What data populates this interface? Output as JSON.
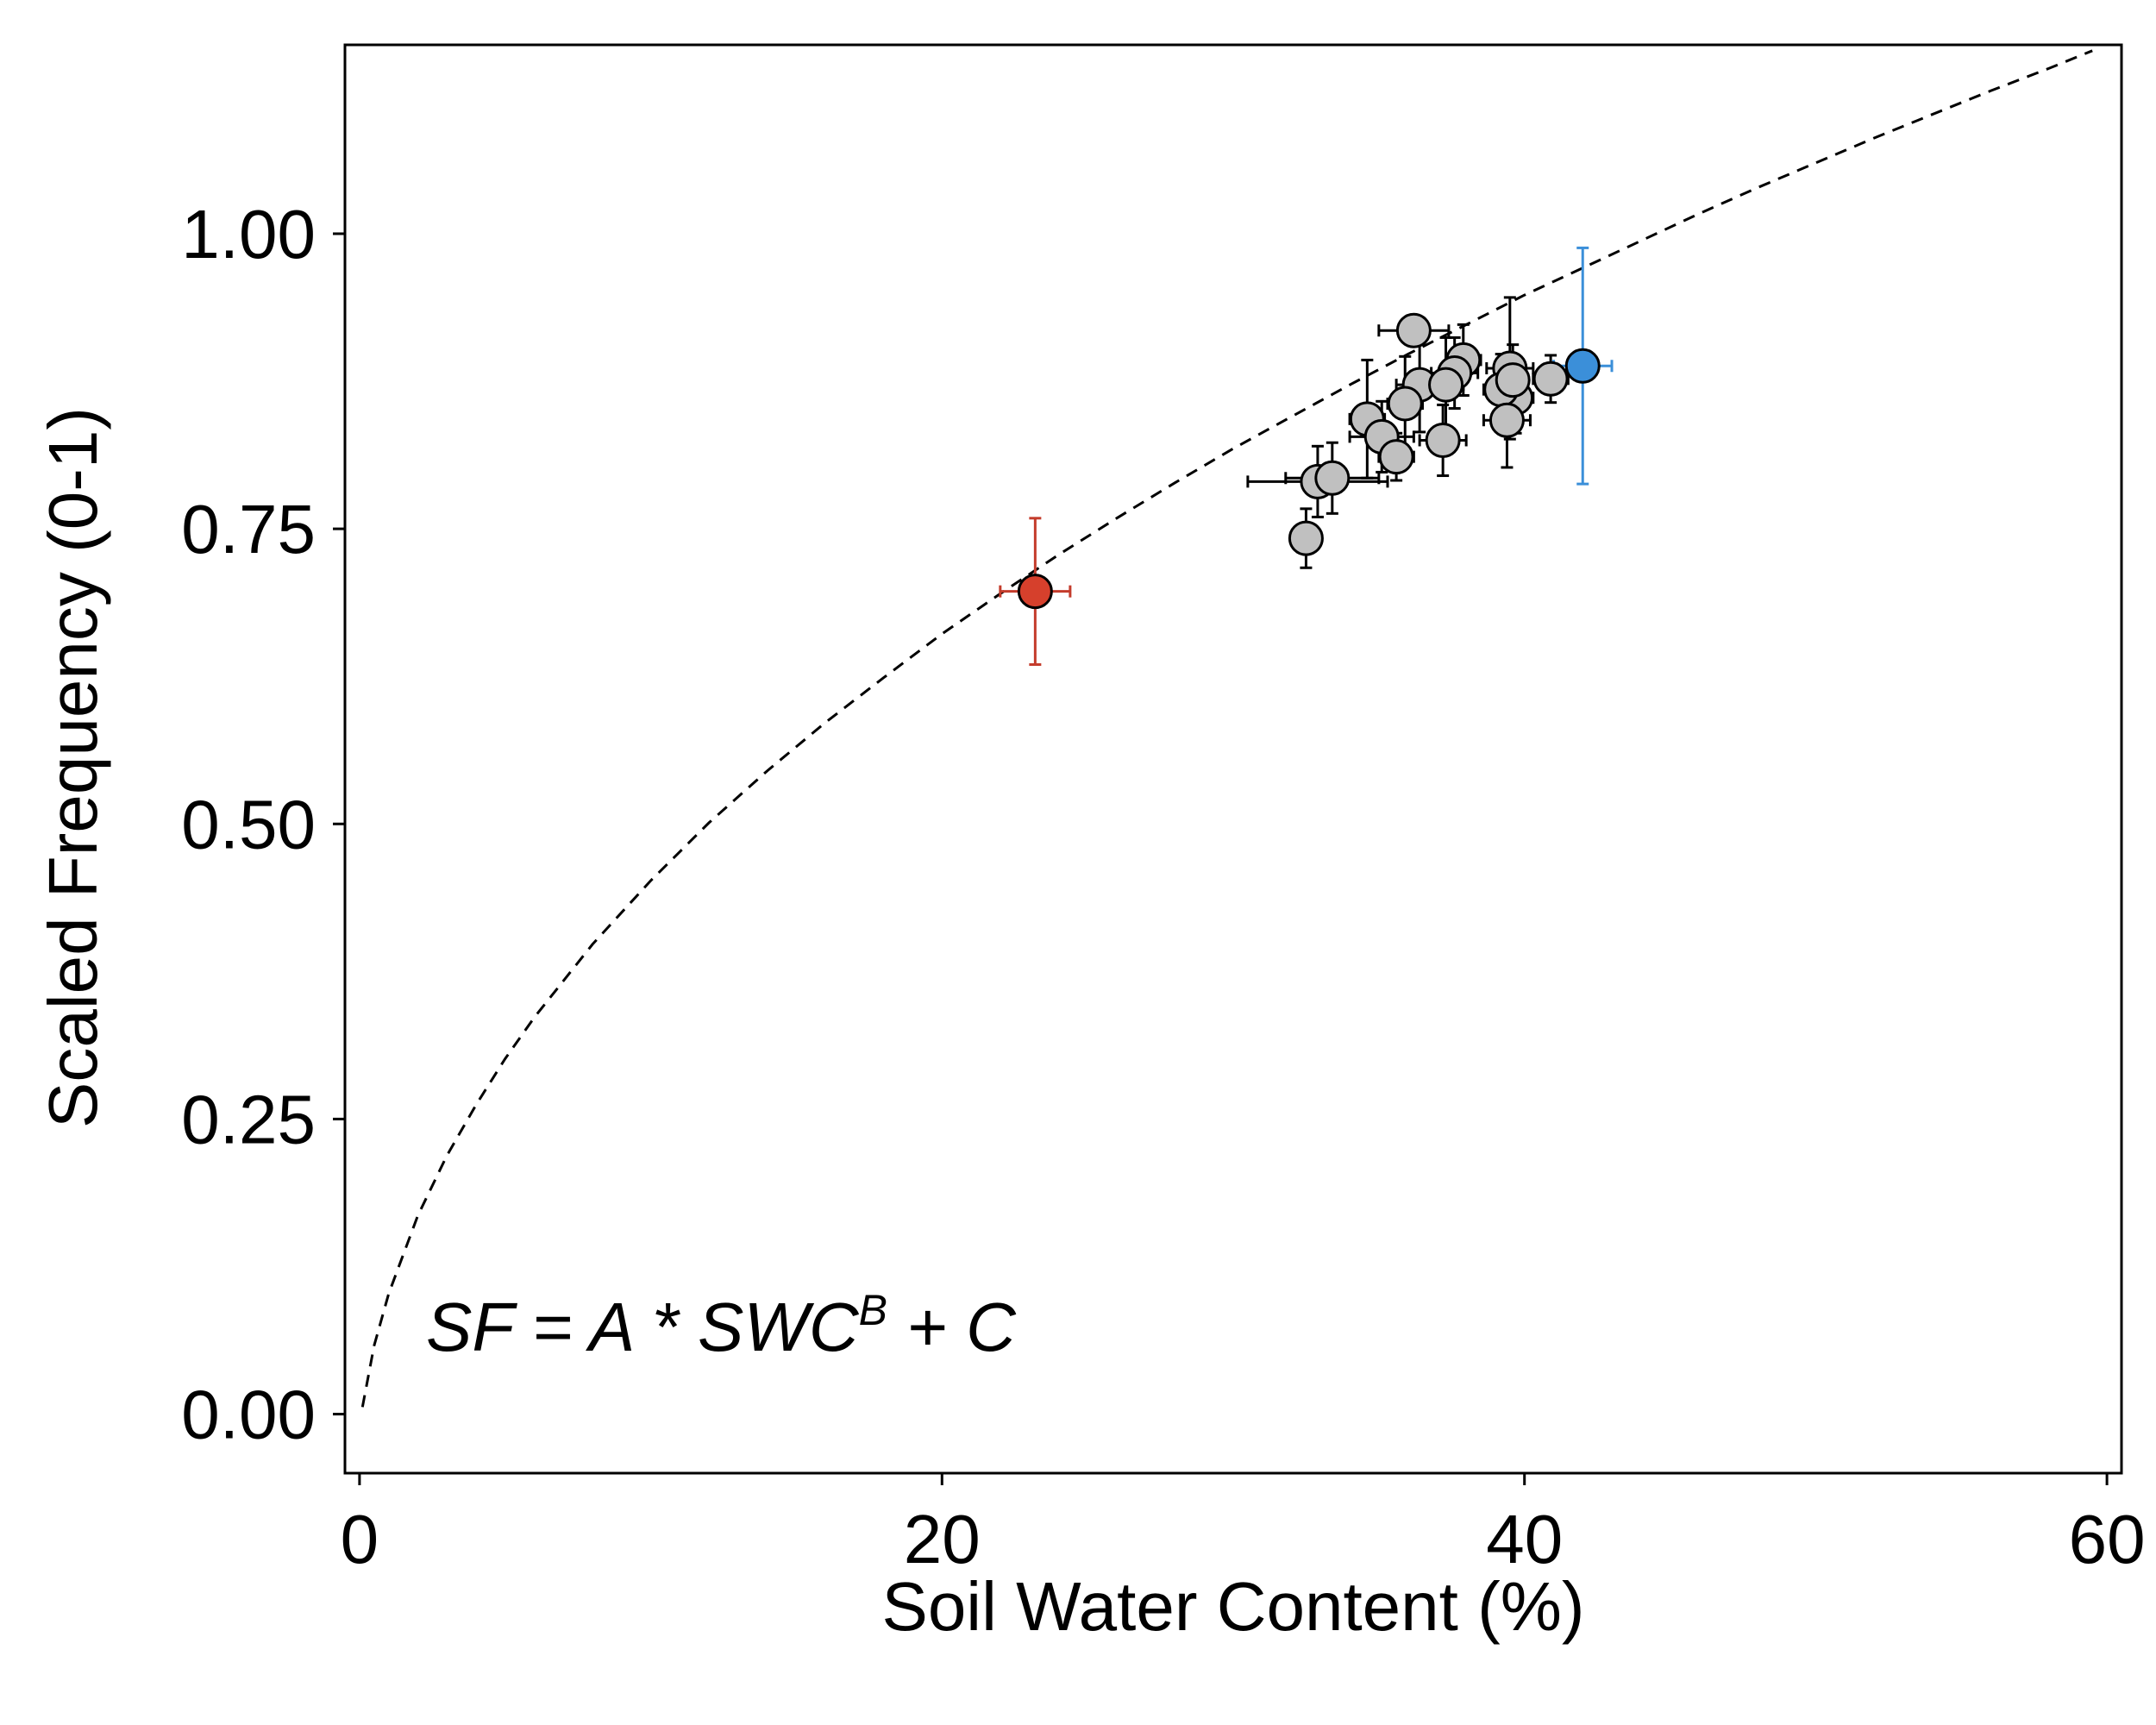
{
  "chart_data": {
    "type": "scatter",
    "xlabel": "Soil Water Content (%)",
    "ylabel": "Scaled Frequency (0-1)",
    "xlim": [
      -0.5,
      60.5
    ],
    "ylim": [
      -0.05,
      1.16
    ],
    "x_ticks": [
      0,
      20,
      40,
      60
    ],
    "x_tick_labels": [
      "0",
      "20",
      "40",
      "60"
    ],
    "y_ticks": [
      0.0,
      0.25,
      0.5,
      0.75,
      1.0
    ],
    "y_tick_labels": [
      "0.00",
      "0.25",
      "0.50",
      "0.75",
      "1.00"
    ],
    "grid": false,
    "equation": {
      "lhs": "SF = A * SWC",
      "superscript": "B",
      "rhs": " + C"
    },
    "fit_curve": {
      "style": "dashed",
      "color": "#000000",
      "x": [
        0.1,
        0.5,
        1,
        2,
        3,
        4,
        5,
        6,
        8,
        10,
        12,
        14,
        16,
        18,
        20,
        22,
        24,
        26,
        28,
        30,
        32,
        34,
        36,
        38,
        40,
        42,
        44,
        46,
        48,
        50,
        52,
        54,
        56,
        58,
        59.5
      ],
      "y": [
        0.006,
        0.058,
        0.102,
        0.168,
        0.219,
        0.262,
        0.301,
        0.336,
        0.398,
        0.452,
        0.501,
        0.545,
        0.586,
        0.624,
        0.661,
        0.695,
        0.728,
        0.759,
        0.789,
        0.818,
        0.845,
        0.872,
        0.898,
        0.923,
        0.948,
        0.971,
        0.994,
        1.017,
        1.039,
        1.06,
        1.081,
        1.101,
        1.121,
        1.14,
        1.155
      ]
    },
    "series": [
      {
        "color": "#c0c0c0",
        "error_color": "#000000",
        "points": [
          {
            "x": 36.2,
            "y": 0.918,
            "xerr": 1.2,
            "yerr": 0.0
          },
          {
            "x": 37.9,
            "y": 0.893,
            "xerr": 0.6,
            "yerr": 0.03
          },
          {
            "x": 39.5,
            "y": 0.886,
            "xerr": 0.8,
            "yerr": 0.06
          },
          {
            "x": 39.7,
            "y": 0.861,
            "xerr": 0.6,
            "yerr": 0.03
          },
          {
            "x": 37.6,
            "y": 0.882,
            "xerr": 0.8,
            "yerr": 0.03
          },
          {
            "x": 36.4,
            "y": 0.872,
            "xerr": 0.8,
            "yerr": 0.04
          },
          {
            "x": 37.3,
            "y": 0.872,
            "xerr": 0.6,
            "yerr": 0.04
          },
          {
            "x": 39.2,
            "y": 0.868,
            "xerr": 0.6,
            "yerr": 0.03
          },
          {
            "x": 39.6,
            "y": 0.876,
            "xerr": 0.5,
            "yerr": 0.03
          },
          {
            "x": 40.9,
            "y": 0.877,
            "xerr": 0.6,
            "yerr": 0.02
          },
          {
            "x": 35.9,
            "y": 0.856,
            "xerr": 0.6,
            "yerr": 0.04
          },
          {
            "x": 34.6,
            "y": 0.843,
            "xerr": 0.6,
            "yerr": 0.05
          },
          {
            "x": 39.4,
            "y": 0.842,
            "xerr": 0.8,
            "yerr": 0.04
          },
          {
            "x": 35.1,
            "y": 0.828,
            "xerr": 1.1,
            "yerr": 0.03
          },
          {
            "x": 37.2,
            "y": 0.825,
            "xerr": 0.8,
            "yerr": 0.03
          },
          {
            "x": 35.6,
            "y": 0.811,
            "xerr": 0.6,
            "yerr": 0.02
          },
          {
            "x": 32.9,
            "y": 0.79,
            "xerr": 2.4,
            "yerr": 0.03
          },
          {
            "x": 33.4,
            "y": 0.793,
            "xerr": 1.6,
            "yerr": 0.03
          },
          {
            "x": 32.5,
            "y": 0.742,
            "xerr": 0.4,
            "yerr": 0.025
          }
        ]
      },
      {
        "color": "#d6402c",
        "error_color": "#c43c2c",
        "points": [
          {
            "x": 23.2,
            "y": 0.697,
            "xerr": 1.2,
            "yerr": 0.062
          }
        ]
      },
      {
        "color": "#3b8fd9",
        "error_color": "#3b8fd9",
        "points": [
          {
            "x": 42.0,
            "y": 0.888,
            "xerr": 1.0,
            "yerr": 0.1
          }
        ]
      }
    ]
  }
}
